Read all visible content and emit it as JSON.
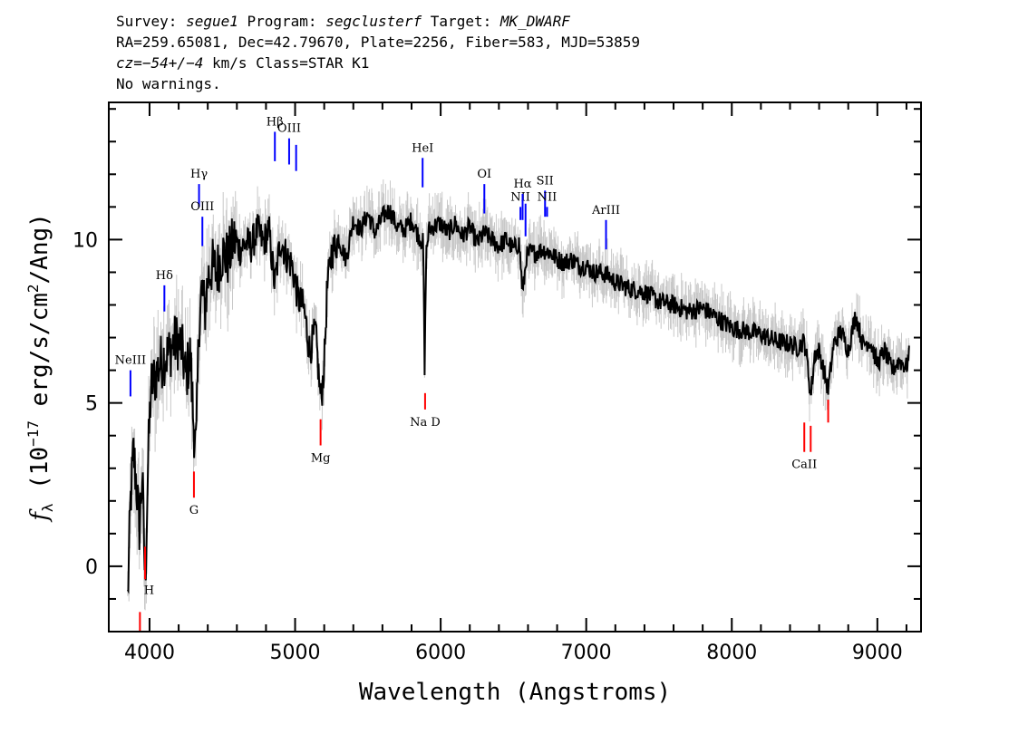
{
  "header": {
    "survey_label": "Survey: ",
    "survey": "segue1",
    "program_label": " Program: ",
    "program": "segclusterf",
    "target_label": " Target: ",
    "target": "MK_DWARF",
    "line2": "RA=259.65081, Dec=42.79670, Plate=2256, Fiber=583, MJD=53859",
    "cz_label": "cz",
    "cz_value": "=−54+/−4",
    "cz_unit": " km/s Class=STAR K1",
    "line4": "No warnings."
  },
  "chart_data": {
    "type": "line",
    "title": "",
    "xlabel": "Wavelength (Angstroms)",
    "ylabel": "f_λ (10^-17 erg/s/cm^2/Ang)",
    "ylabel_parts": {
      "f": "f",
      "sub": "λ",
      "pre": " (10",
      "exp": "−17",
      "mid": " erg/s/cm",
      "exp2": "2",
      "post": "/Ang)"
    },
    "xlim": [
      3720,
      9300
    ],
    "ylim": [
      -2,
      14.2
    ],
    "xticks": [
      4000,
      5000,
      6000,
      7000,
      8000,
      9000
    ],
    "xtick_labels": [
      "4000",
      "5000",
      "6000",
      "7000",
      "8000",
      "9000"
    ],
    "yticks": [
      0,
      5,
      10
    ],
    "ytick_labels": [
      "0",
      "5",
      "10"
    ],
    "colors": {
      "flux": "#000000",
      "noise": "#c8c8c8",
      "emission": "#0000ff",
      "absorption": "#ff0000",
      "axes": "#000000"
    },
    "flux": {
      "x": [
        3850,
        3870,
        3890,
        3910,
        3930,
        3950,
        3970,
        3990,
        4010,
        4040,
        4070,
        4100,
        4130,
        4160,
        4190,
        4220,
        4250,
        4280,
        4300,
        4320,
        4340,
        4360,
        4380,
        4400,
        4430,
        4460,
        4500,
        4540,
        4580,
        4620,
        4660,
        4700,
        4740,
        4780,
        4820,
        4860,
        4900,
        4940,
        4980,
        5020,
        5060,
        5100,
        5140,
        5170,
        5180,
        5200,
        5220,
        5250,
        5300,
        5350,
        5400,
        5450,
        5500,
        5550,
        5600,
        5650,
        5700,
        5750,
        5800,
        5850,
        5880,
        5890,
        5900,
        5920,
        5950,
        6000,
        6050,
        6100,
        6150,
        6200,
        6250,
        6300,
        6350,
        6400,
        6450,
        6500,
        6540,
        6563,
        6590,
        6620,
        6650,
        6700,
        6750,
        6800,
        6850,
        6900,
        6950,
        7000,
        7050,
        7100,
        7150,
        7200,
        7300,
        7400,
        7500,
        7600,
        7700,
        7800,
        7900,
        8000,
        8100,
        8200,
        8300,
        8400,
        8450,
        8498,
        8520,
        8542,
        8570,
        8600,
        8662,
        8700,
        8750,
        8800,
        8850,
        8900,
        8950,
        9000,
        9050,
        9100,
        9150,
        9200,
        9220
      ],
      "y": [
        -1.0,
        2.0,
        3.5,
        2.5,
        1.2,
        2.8,
        -0.6,
        3.2,
        5.5,
        5.8,
        6.2,
        6.4,
        6.5,
        6.8,
        6.9,
        6.7,
        5.8,
        6.5,
        4.5,
        3.5,
        7.5,
        8.5,
        7.8,
        8.8,
        9.2,
        9.0,
        9.6,
        9.4,
        10.0,
        9.7,
        9.9,
        9.8,
        10.3,
        9.9,
        10.3,
        8.6,
        10.0,
        9.5,
        9.2,
        8.2,
        7.9,
        6.6,
        7.2,
        5.4,
        5.1,
        6.2,
        8.5,
        9.6,
        10.0,
        9.4,
        10.6,
        10.3,
        10.8,
        10.2,
        10.7,
        10.9,
        10.4,
        10.3,
        10.6,
        10.1,
        9.9,
        5.9,
        9.6,
        10.3,
        10.4,
        10.5,
        10.2,
        10.5,
        10.1,
        10.4,
        9.9,
        10.2,
        10.0,
        9.8,
        10.0,
        9.7,
        9.9,
        8.3,
        9.5,
        9.6,
        9.6,
        9.7,
        9.6,
        9.4,
        9.3,
        9.4,
        9.2,
        9.2,
        9.0,
        9.0,
        8.9,
        8.7,
        8.5,
        8.4,
        8.1,
        8.0,
        7.8,
        7.9,
        7.6,
        7.3,
        7.2,
        7.1,
        6.9,
        6.8,
        6.7,
        6.9,
        6.2,
        5.2,
        6.5,
        6.6,
        5.4,
        6.8,
        7.2,
        6.6,
        7.7,
        6.8,
        6.9,
        6.2,
        6.6,
        6.0,
        6.3,
        6.1,
        6.5
      ]
    },
    "emission_lines": [
      {
        "label": "NeIII",
        "x": 3869,
        "y0": 5.2,
        "y1": 6.0
      },
      {
        "label": "Hδ",
        "x": 4102,
        "y0": 7.8,
        "y1": 8.6
      },
      {
        "label": "Hγ",
        "x": 4340,
        "y0": 11.0,
        "y1": 11.7
      },
      {
        "label": "OIII",
        "x": 4363,
        "y0": 9.8,
        "y1": 10.7
      },
      {
        "label": "Hβ",
        "x": 4861,
        "y0": 12.4,
        "y1": 13.3
      },
      {
        "label": "OIII",
        "x": 4959,
        "y0": 12.3,
        "y1": 13.1
      },
      {
        "label": "",
        "x": 5007,
        "y0": 12.1,
        "y1": 12.9
      },
      {
        "label": "HeI",
        "x": 5876,
        "y0": 11.6,
        "y1": 12.5
      },
      {
        "label": "OI",
        "x": 6300,
        "y0": 10.8,
        "y1": 11.7
      },
      {
        "label": "NII",
        "x": 6548,
        "y0": 10.6,
        "y1": 11.0
      },
      {
        "label": "Hα",
        "x": 6563,
        "y0": 10.6,
        "y1": 11.4
      },
      {
        "label": "",
        "x": 6583,
        "y0": 10.1,
        "y1": 11.1
      },
      {
        "label": "SII",
        "x": 6717,
        "y0": 10.7,
        "y1": 11.5
      },
      {
        "label": "NII",
        "x": 6731,
        "y0": 10.7,
        "y1": 11.0
      },
      {
        "label": "ArIII",
        "x": 7136,
        "y0": 9.7,
        "y1": 10.6
      }
    ],
    "absorption_lines": [
      {
        "label": "H",
        "x": 3934,
        "y0": -2.0,
        "y1": -1.4
      },
      {
        "label": "",
        "x": 3969,
        "y0": -0.4,
        "y1": 0.6
      },
      {
        "label": "G",
        "x": 4305,
        "y0": 2.1,
        "y1": 2.9
      },
      {
        "label": "Mg",
        "x": 5175,
        "y0": 3.7,
        "y1": 4.5
      },
      {
        "label": "Na D",
        "x": 5893,
        "y0": 4.8,
        "y1": 5.3
      },
      {
        "label": "CaII",
        "x": 8498,
        "y0": 3.5,
        "y1": 4.4
      },
      {
        "label": "",
        "x": 8542,
        "y0": 3.5,
        "y1": 4.3
      },
      {
        "label": "",
        "x": 8662,
        "y0": 4.4,
        "y1": 5.1
      }
    ]
  }
}
